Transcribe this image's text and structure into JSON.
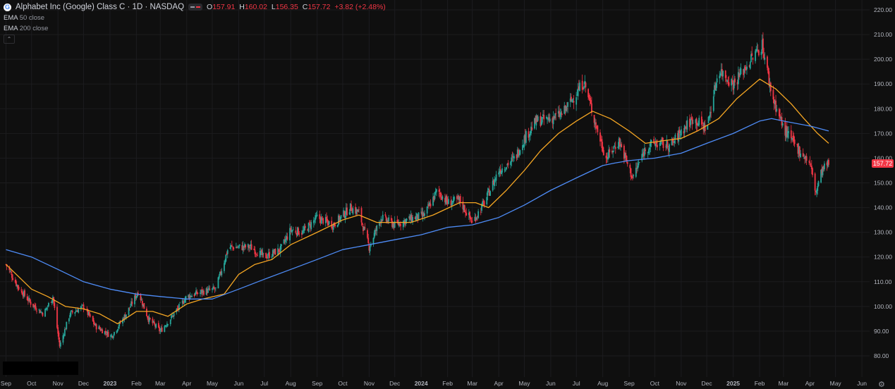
{
  "header": {
    "symbol_title": "Alphabet Inc (Google) Class C · 1D · NASDAQ",
    "logo_letter": "G",
    "ohlc": {
      "o_label": "O",
      "o": "157.91",
      "h_label": "H",
      "h": "160.02",
      "l_label": "L",
      "l": "156.35",
      "c_label": "C",
      "c": "157.72",
      "change": "+3.82 (+2.48%)"
    }
  },
  "indicators": [
    {
      "name": "EMA",
      "params": "50 close",
      "color": "#f5a623"
    },
    {
      "name": "EMA",
      "params": "200 close",
      "color": "#4e8cf7"
    }
  ],
  "collapse_icon": "chevron-up-icon",
  "settings_icon": "gear-icon",
  "last_price_label": "157.72",
  "colors": {
    "up": "#26a69a",
    "down": "#f23645",
    "ema50": "#f5a623",
    "ema200": "#4e8cf7",
    "background": "#0f0f0f"
  },
  "chart_data": {
    "type": "candlestick",
    "title": "Alphabet Inc (Google) Class C · 1D · NASDAQ",
    "ylim": [
      75,
      225
    ],
    "y_ticks": [
      "80.00",
      "90.00",
      "100.00",
      "110.00",
      "120.00",
      "130.00",
      "140.00",
      "150.00",
      "160.00",
      "170.00",
      "180.00",
      "190.00",
      "200.00",
      "210.00",
      "220.00"
    ],
    "x_ticks": [
      {
        "label": "Sep",
        "date": "2022-09-01"
      },
      {
        "label": "Oct",
        "date": "2022-10-01"
      },
      {
        "label": "Nov",
        "date": "2022-11-01"
      },
      {
        "label": "Dec",
        "date": "2022-12-01"
      },
      {
        "label": "2023",
        "date": "2023-01-01"
      },
      {
        "label": "Feb",
        "date": "2023-02-01"
      },
      {
        "label": "Mar",
        "date": "2023-03-01"
      },
      {
        "label": "Apr",
        "date": "2023-04-01"
      },
      {
        "label": "May",
        "date": "2023-05-01"
      },
      {
        "label": "Jun",
        "date": "2023-06-01"
      },
      {
        "label": "Jul",
        "date": "2023-07-01"
      },
      {
        "label": "Aug",
        "date": "2023-08-01"
      },
      {
        "label": "Sep",
        "date": "2023-09-01"
      },
      {
        "label": "Oct",
        "date": "2023-10-01"
      },
      {
        "label": "Nov",
        "date": "2023-11-01"
      },
      {
        "label": "Dec",
        "date": "2023-12-01"
      },
      {
        "label": "2024",
        "date": "2024-01-01"
      },
      {
        "label": "Feb",
        "date": "2024-02-01"
      },
      {
        "label": "Mar",
        "date": "2024-03-01"
      },
      {
        "label": "Apr",
        "date": "2024-04-01"
      },
      {
        "label": "May",
        "date": "2024-05-01"
      },
      {
        "label": "Jun",
        "date": "2024-06-01"
      },
      {
        "label": "Jul",
        "date": "2024-07-01"
      },
      {
        "label": "Aug",
        "date": "2024-08-01"
      },
      {
        "label": "Sep",
        "date": "2024-09-01"
      },
      {
        "label": "Oct",
        "date": "2024-10-01"
      },
      {
        "label": "Nov",
        "date": "2024-11-01"
      },
      {
        "label": "Dec",
        "date": "2024-12-01"
      },
      {
        "label": "2025",
        "date": "2025-01-01"
      },
      {
        "label": "Feb",
        "date": "2025-02-01"
      },
      {
        "label": "Mar",
        "date": "2025-03-01"
      },
      {
        "label": "Apr",
        "date": "2025-04-01"
      },
      {
        "label": "May",
        "date": "2025-05-01"
      },
      {
        "label": "Jun",
        "date": "2025-06-01"
      }
    ],
    "price_close": [
      [
        "2022-09-01",
        117
      ],
      [
        "2022-09-15",
        108
      ],
      [
        "2022-10-01",
        101
      ],
      [
        "2022-10-15",
        97
      ],
      [
        "2022-10-26",
        104
      ],
      [
        "2022-11-03",
        84
      ],
      [
        "2022-11-15",
        97
      ],
      [
        "2022-12-01",
        100
      ],
      [
        "2022-12-15",
        92
      ],
      [
        "2023-01-03",
        88
      ],
      [
        "2023-01-20",
        97
      ],
      [
        "2023-02-03",
        106
      ],
      [
        "2023-02-15",
        95
      ],
      [
        "2023-03-01",
        90
      ],
      [
        "2023-03-15",
        96
      ],
      [
        "2023-04-01",
        104
      ],
      [
        "2023-04-20",
        106
      ],
      [
        "2023-05-05",
        107
      ],
      [
        "2023-05-20",
        124
      ],
      [
        "2023-06-01",
        124
      ],
      [
        "2023-06-15",
        124
      ],
      [
        "2023-07-01",
        120
      ],
      [
        "2023-07-20",
        123
      ],
      [
        "2023-08-01",
        131
      ],
      [
        "2023-08-15",
        130
      ],
      [
        "2023-09-01",
        136
      ],
      [
        "2023-09-20",
        133
      ],
      [
        "2023-10-10",
        140
      ],
      [
        "2023-10-20",
        138
      ],
      [
        "2023-11-01",
        124
      ],
      [
        "2023-11-15",
        136
      ],
      [
        "2023-12-01",
        133
      ],
      [
        "2023-12-15",
        135
      ],
      [
        "2024-01-05",
        137
      ],
      [
        "2024-01-20",
        147
      ],
      [
        "2024-02-01",
        142
      ],
      [
        "2024-02-15",
        143
      ],
      [
        "2024-03-01",
        134
      ],
      [
        "2024-03-15",
        142
      ],
      [
        "2024-04-01",
        155
      ],
      [
        "2024-04-20",
        160
      ],
      [
        "2024-05-01",
        168
      ],
      [
        "2024-05-15",
        175
      ],
      [
        "2024-06-01",
        176
      ],
      [
        "2024-06-15",
        178
      ],
      [
        "2024-07-10",
        191
      ],
      [
        "2024-07-25",
        172
      ],
      [
        "2024-08-05",
        160
      ],
      [
        "2024-08-20",
        167
      ],
      [
        "2024-09-05",
        152
      ],
      [
        "2024-09-20",
        164
      ],
      [
        "2024-10-01",
        166
      ],
      [
        "2024-10-20",
        165
      ],
      [
        "2024-11-01",
        171
      ],
      [
        "2024-11-15",
        176
      ],
      [
        "2024-12-01",
        172
      ],
      [
        "2024-12-15",
        196
      ],
      [
        "2025-01-01",
        190
      ],
      [
        "2025-01-20",
        199
      ],
      [
        "2025-02-04",
        206
      ],
      [
        "2025-02-15",
        186
      ],
      [
        "2025-03-01",
        172
      ],
      [
        "2025-03-15",
        165
      ],
      [
        "2025-04-01",
        158
      ],
      [
        "2025-04-08",
        146
      ],
      [
        "2025-04-15",
        155
      ],
      [
        "2025-04-23",
        157.72
      ]
    ],
    "series": [
      {
        "name": "EMA 50 close",
        "points": [
          [
            "2022-09-01",
            117
          ],
          [
            "2022-10-01",
            107
          ],
          [
            "2022-10-20",
            104
          ],
          [
            "2022-11-10",
            100
          ],
          [
            "2022-12-01",
            99
          ],
          [
            "2022-12-20",
            97
          ],
          [
            "2023-01-10",
            93
          ],
          [
            "2023-02-01",
            98
          ],
          [
            "2023-02-20",
            98
          ],
          [
            "2023-03-10",
            96
          ],
          [
            "2023-04-01",
            101
          ],
          [
            "2023-04-20",
            103
          ],
          [
            "2023-05-15",
            105
          ],
          [
            "2023-06-01",
            113
          ],
          [
            "2023-06-20",
            117
          ],
          [
            "2023-07-10",
            119
          ],
          [
            "2023-08-01",
            125
          ],
          [
            "2023-09-01",
            130
          ],
          [
            "2023-10-01",
            135
          ],
          [
            "2023-10-20",
            137
          ],
          [
            "2023-11-10",
            134
          ],
          [
            "2023-12-01",
            134
          ],
          [
            "2023-12-20",
            134
          ],
          [
            "2024-01-15",
            137
          ],
          [
            "2024-02-15",
            142
          ],
          [
            "2024-03-05",
            142
          ],
          [
            "2024-03-20",
            140
          ],
          [
            "2024-04-10",
            147
          ],
          [
            "2024-05-01",
            155
          ],
          [
            "2024-05-20",
            163
          ],
          [
            "2024-06-10",
            170
          ],
          [
            "2024-07-01",
            175
          ],
          [
            "2024-07-20",
            179
          ],
          [
            "2024-08-10",
            176
          ],
          [
            "2024-09-01",
            171
          ],
          [
            "2024-09-20",
            166
          ],
          [
            "2024-10-10",
            167
          ],
          [
            "2024-11-01",
            168
          ],
          [
            "2024-11-20",
            171
          ],
          [
            "2024-12-15",
            176
          ],
          [
            "2025-01-05",
            184
          ],
          [
            "2025-02-01",
            192
          ],
          [
            "2025-02-20",
            188
          ],
          [
            "2025-03-10",
            182
          ],
          [
            "2025-03-25",
            176
          ],
          [
            "2025-04-10",
            170
          ],
          [
            "2025-04-23",
            166
          ]
        ]
      },
      {
        "name": "EMA 200 close",
        "points": [
          [
            "2022-09-01",
            123
          ],
          [
            "2022-10-01",
            120
          ],
          [
            "2022-11-01",
            115
          ],
          [
            "2022-12-01",
            110
          ],
          [
            "2023-01-01",
            107
          ],
          [
            "2023-02-01",
            105
          ],
          [
            "2023-03-01",
            104
          ],
          [
            "2023-04-01",
            103
          ],
          [
            "2023-05-01",
            103
          ],
          [
            "2023-06-01",
            107
          ],
          [
            "2023-07-01",
            111
          ],
          [
            "2023-08-01",
            115
          ],
          [
            "2023-09-01",
            119
          ],
          [
            "2023-10-01",
            123
          ],
          [
            "2023-11-01",
            125
          ],
          [
            "2023-12-01",
            127
          ],
          [
            "2024-01-01",
            129
          ],
          [
            "2024-02-01",
            132
          ],
          [
            "2024-03-01",
            133
          ],
          [
            "2024-04-01",
            136
          ],
          [
            "2024-05-01",
            141
          ],
          [
            "2024-06-01",
            147
          ],
          [
            "2024-07-01",
            152
          ],
          [
            "2024-08-01",
            157
          ],
          [
            "2024-08-15",
            158
          ],
          [
            "2024-09-01",
            159
          ],
          [
            "2024-10-01",
            160
          ],
          [
            "2024-11-01",
            162
          ],
          [
            "2024-12-01",
            166
          ],
          [
            "2025-01-01",
            170
          ],
          [
            "2025-02-01",
            175
          ],
          [
            "2025-02-15",
            176
          ],
          [
            "2025-03-01",
            175
          ],
          [
            "2025-04-01",
            173
          ],
          [
            "2025-04-23",
            171
          ]
        ]
      }
    ]
  }
}
